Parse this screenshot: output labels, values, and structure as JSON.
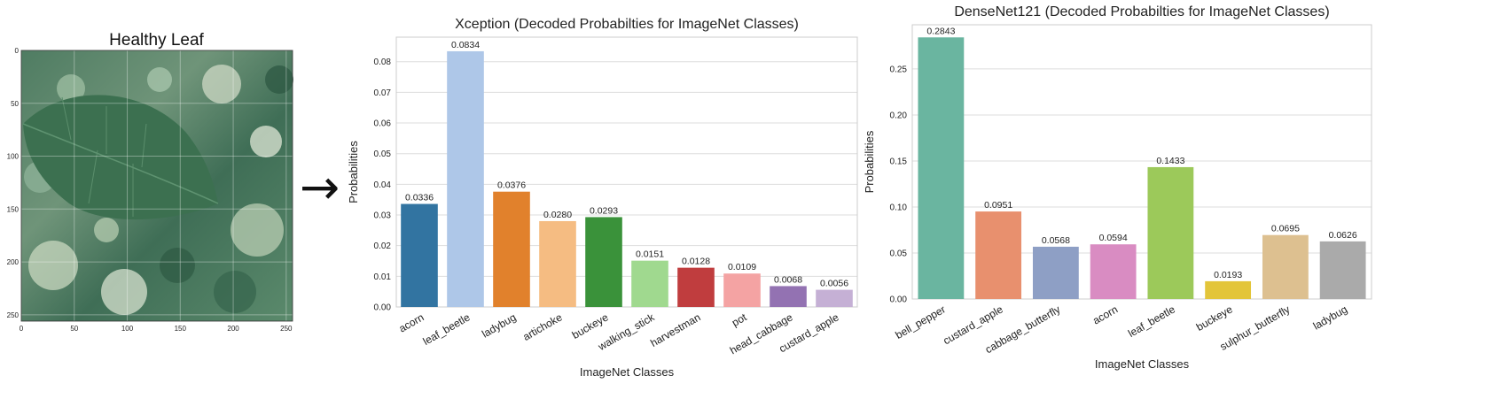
{
  "image_panel": {
    "title": "Healthy Leaf",
    "x_ticks": [
      "0",
      "50",
      "100",
      "150",
      "200",
      "250"
    ],
    "y_ticks": [
      "0",
      "50",
      "100",
      "150",
      "200",
      "250"
    ]
  },
  "arrow": "→",
  "chart_data": [
    {
      "type": "bar",
      "title": "Xception (Decoded Probabilties for ImageNet Classes)",
      "xlabel": "ImageNet Classes",
      "ylabel": "Probabilities",
      "ylim": [
        0,
        0.088
      ],
      "yticks": [
        0,
        0.01,
        0.02,
        0.03,
        0.04,
        0.05,
        0.06,
        0.07,
        0.08
      ],
      "ytick_labels": [
        "0.00",
        "0.01",
        "0.02",
        "0.03",
        "0.04",
        "0.05",
        "0.06",
        "0.07",
        "0.08"
      ],
      "grid": true,
      "categories": [
        "acorn",
        "leaf_beetle",
        "ladybug",
        "artichoke",
        "buckeye",
        "walking_stick",
        "harvestman",
        "pot",
        "head_cabbage",
        "custard_apple"
      ],
      "values": [
        0.0336,
        0.0834,
        0.0376,
        0.028,
        0.0293,
        0.0151,
        0.0128,
        0.0109,
        0.0068,
        0.0056
      ],
      "data_labels": [
        "0.0336",
        "0.0834",
        "0.0376",
        "0.0280",
        "0.0293",
        "0.0151",
        "0.0128",
        "0.0109",
        "0.0068",
        "0.0056"
      ],
      "colors": [
        "#3274a1",
        "#aec7e8",
        "#e1812c",
        "#f5bc82",
        "#3a923a",
        "#a0d98f",
        "#c03d3e",
        "#f4a3a3",
        "#9372b2",
        "#c5b0d5"
      ]
    },
    {
      "type": "bar",
      "title": "DenseNet121 (Decoded Probabilties for ImageNet Classes)",
      "xlabel": "ImageNet Classes",
      "ylabel": "Probabilities",
      "ylim": [
        0,
        0.298
      ],
      "yticks": [
        0,
        0.05,
        0.1,
        0.15,
        0.2,
        0.25
      ],
      "ytick_labels": [
        "0.00",
        "0.05",
        "0.10",
        "0.15",
        "0.20",
        "0.25"
      ],
      "grid": true,
      "categories": [
        "bell_pepper",
        "custard_apple",
        "cabbage_butterfly",
        "acorn",
        "leaf_beetle",
        "buckeye",
        "sulphur_butterfly",
        "ladybug"
      ],
      "values": [
        0.2843,
        0.0951,
        0.0568,
        0.0594,
        0.1433,
        0.0193,
        0.0695,
        0.0626
      ],
      "data_labels": [
        "0.2843",
        "0.0951",
        "0.0568",
        "0.0594",
        "0.1433",
        "0.0193",
        "0.0695",
        "0.0626"
      ],
      "colors": [
        "#6ab5a0",
        "#e8906e",
        "#8e9fc5",
        "#d98cc2",
        "#9cc95a",
        "#e3c53a",
        "#ddc090",
        "#aaaaaa"
      ]
    }
  ]
}
